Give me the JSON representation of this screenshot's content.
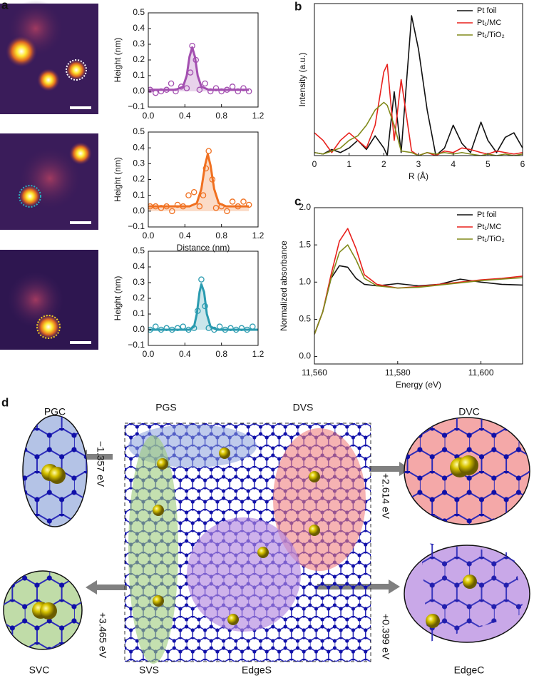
{
  "panel_labels": [
    "a",
    "b",
    "c",
    "d"
  ],
  "chart_data": [
    {
      "type": "scatter",
      "ylabel": "Height (nm)",
      "xlim": [
        0,
        1.2
      ],
      "xticks": [
        {
          "value": 0,
          "label": "0.0"
        },
        0.4,
        0.8,
        1.2
      ],
      "ylim": [
        -0.1,
        0.5
      ],
      "yticks": [
        {
          "value": -0.1,
          "label": "−0.1"
        },
        {
          "value": 0,
          "label": "0.0"
        },
        0.1,
        0.2,
        0.3,
        0.4,
        0.5
      ],
      "series": [
        {
          "mode": "markers",
          "color": "#a34fb0",
          "x": [
            0.02,
            0.08,
            0.14,
            0.2,
            0.25,
            0.3,
            0.36,
            0.42,
            0.46,
            0.48,
            0.52,
            0.56,
            0.62,
            0.68,
            0.74,
            0.8,
            0.86,
            0.92,
            0.98,
            1.04,
            1.1
          ],
          "values": [
            0.01,
            -0.01,
            0.0,
            0.01,
            0.05,
            0.0,
            0.03,
            0.02,
            0.12,
            0.29,
            0.2,
            0.01,
            0.05,
            0.0,
            0.02,
            0.0,
            0.01,
            0.03,
            0.0,
            0.02,
            0.0
          ]
        },
        {
          "mode": "line",
          "fill": true,
          "color": "#a34fb0",
          "x": [
            0,
            0.3,
            0.38,
            0.42,
            0.45,
            0.48,
            0.51,
            0.54,
            0.58,
            0.66,
            1.1
          ],
          "values": [
            0.01,
            0.01,
            0.03,
            0.1,
            0.22,
            0.28,
            0.22,
            0.1,
            0.03,
            0.01,
            0.01
          ]
        }
      ]
    },
    {
      "type": "scatter",
      "ylabel": "Height (nm)",
      "xlabel": "Distance (nm)",
      "xlim": [
        0,
        1.2
      ],
      "xticks": [
        {
          "value": 0,
          "label": "0.0"
        },
        0.4,
        0.8,
        1.2
      ],
      "ylim": [
        -0.1,
        0.5
      ],
      "yticks": [
        {
          "value": -0.1,
          "label": "−0.1"
        },
        {
          "value": 0,
          "label": "0.0"
        },
        0.1,
        0.2,
        0.3,
        0.4,
        0.5
      ],
      "series": [
        {
          "mode": "markers",
          "color": "#f07020",
          "x": [
            0.02,
            0.08,
            0.14,
            0.2,
            0.26,
            0.32,
            0.38,
            0.44,
            0.5,
            0.56,
            0.6,
            0.63,
            0.66,
            0.7,
            0.74,
            0.8,
            0.86,
            0.92,
            0.98,
            1.04,
            1.1
          ],
          "values": [
            0.03,
            0.03,
            0.02,
            0.03,
            0.0,
            0.04,
            0.03,
            0.1,
            0.12,
            0.03,
            0.1,
            0.27,
            0.38,
            0.2,
            0.02,
            0.03,
            0.0,
            0.06,
            0.03,
            0.06,
            0.04
          ]
        },
        {
          "mode": "line",
          "fill": true,
          "color": "#f07020",
          "x": [
            0,
            0.45,
            0.53,
            0.58,
            0.62,
            0.65,
            0.68,
            0.72,
            0.77,
            0.85,
            1.1
          ],
          "values": [
            0.03,
            0.03,
            0.05,
            0.14,
            0.29,
            0.36,
            0.29,
            0.14,
            0.05,
            0.03,
            0.03
          ]
        }
      ]
    },
    {
      "type": "scatter",
      "ylabel": "Height (nm)",
      "xlim": [
        0,
        1.2
      ],
      "xticks": [
        {
          "value": 0,
          "label": "0.0"
        },
        0.4,
        0.8,
        1.2
      ],
      "ylim": [
        -0.1,
        0.5
      ],
      "yticks": [
        {
          "value": -0.1,
          "label": "−0.1"
        },
        {
          "value": 0,
          "label": "0.0"
        },
        0.1,
        0.2,
        0.3,
        0.4,
        0.5
      ],
      "series": [
        {
          "mode": "markers",
          "color": "#2a9bb0",
          "x": [
            0.02,
            0.08,
            0.14,
            0.2,
            0.26,
            0.32,
            0.38,
            0.44,
            0.5,
            0.54,
            0.58,
            0.62,
            0.66,
            0.72,
            0.78,
            0.84,
            0.9,
            0.96,
            1.02,
            1.08,
            1.14
          ],
          "values": [
            0.0,
            0.02,
            0.0,
            0.01,
            0.0,
            0.01,
            0.02,
            0.0,
            0.01,
            0.12,
            0.32,
            0.15,
            0.01,
            0.0,
            0.02,
            0.0,
            0.01,
            0.0,
            0.01,
            0.0,
            0.02
          ]
        },
        {
          "mode": "line",
          "fill": true,
          "color": "#2a9bb0",
          "x": [
            0,
            0.45,
            0.5,
            0.53,
            0.56,
            0.58,
            0.61,
            0.64,
            0.68,
            0.75,
            1.2
          ],
          "values": [
            0,
            0,
            0.02,
            0.1,
            0.24,
            0.29,
            0.24,
            0.1,
            0.02,
            0,
            0
          ]
        }
      ]
    },
    {
      "type": "line",
      "ylabel": "Intensity (a.u.)",
      "xlabel": "R (Å)",
      "legend": "upper right",
      "xlim": [
        0,
        6
      ],
      "xticks": [
        0,
        1,
        2,
        3,
        4,
        5,
        6
      ],
      "ylim": [
        0,
        1
      ],
      "yticks": [],
      "series": [
        {
          "name": "Pt foil",
          "color": "#111111",
          "x": [
            0,
            0.25,
            0.5,
            0.75,
            1,
            1.25,
            1.5,
            1.75,
            2,
            2.1,
            2.3,
            2.5,
            2.8,
            3,
            3.25,
            3.5,
            3.75,
            4,
            4.25,
            4.5,
            4.8,
            5,
            5.25,
            5.5,
            5.75,
            6
          ],
          "values": [
            0.02,
            0.01,
            0.04,
            0.02,
            0.05,
            0.1,
            0.04,
            0.13,
            0.05,
            0.0,
            0.42,
            0.02,
            0.92,
            0.7,
            0.3,
            0.0,
            0.05,
            0.2,
            0.08,
            0.02,
            0.22,
            0.1,
            0.02,
            0.12,
            0.15,
            0.05
          ]
        },
        {
          "name": "Pt₁/MC",
          "color": "#e8201c",
          "x": [
            0,
            0.25,
            0.5,
            0.75,
            1,
            1.25,
            1.5,
            1.75,
            2,
            2.1,
            2.3,
            2.5,
            2.8,
            3,
            3.25,
            3.5,
            3.75,
            4,
            4.25,
            4.5,
            4.8,
            5,
            5.25,
            5.5,
            5.75,
            6
          ],
          "values": [
            0.15,
            0.1,
            0.02,
            0.1,
            0.15,
            0.1,
            0.05,
            0.2,
            0.55,
            0.6,
            0.1,
            0.5,
            0.03,
            0.0,
            0.02,
            0.0,
            0.03,
            0.02,
            0.05,
            0.04,
            0.02,
            0.01,
            0.03,
            0.02,
            0.01,
            0.02
          ]
        },
        {
          "name": "Pt₁/TiO₂",
          "color": "#808a1a",
          "x": [
            0,
            0.25,
            0.5,
            0.75,
            1,
            1.25,
            1.5,
            1.75,
            2,
            2.1,
            2.3,
            2.5,
            2.8,
            3,
            3.25,
            3.5,
            3.75,
            4,
            4.25,
            4.5,
            4.8,
            5,
            5.25,
            5.5,
            5.75,
            6
          ],
          "values": [
            0.02,
            0.01,
            0.03,
            0.05,
            0.1,
            0.13,
            0.2,
            0.3,
            0.35,
            0.33,
            0.2,
            0.03,
            0.02,
            0.0,
            0.02,
            0.01,
            0.02,
            0.01,
            0.02,
            0.01,
            0.0,
            0.01,
            0.0,
            0.01,
            0.0,
            0.01
          ]
        }
      ]
    },
    {
      "type": "line",
      "ylabel": "Normalized absorbance",
      "xlabel": "Energy (eV)",
      "legend": "upper right",
      "xlim": [
        11560,
        11610
      ],
      "xticks": [
        {
          "value": 11560,
          "label": "11,560"
        },
        {
          "value": 11580,
          "label": "11,580"
        },
        {
          "value": 11600,
          "label": "11,600"
        }
      ],
      "ylim": [
        -0.1,
        2.0
      ],
      "yticks": [
        {
          "value": 0,
          "label": "0.0"
        },
        0.5,
        {
          "value": 1,
          "label": "1.0"
        },
        1.5,
        {
          "value": 2,
          "label": "2.0"
        }
      ],
      "series": [
        {
          "name": "Pt foil",
          "color": "#111111",
          "x": [
            11560,
            11562,
            11564,
            11566,
            11568,
            11570,
            11572,
            11575,
            11580,
            11585,
            11590,
            11595,
            11600,
            11605,
            11610
          ],
          "values": [
            0.3,
            0.6,
            1.05,
            1.22,
            1.2,
            1.05,
            0.97,
            0.95,
            0.98,
            0.95,
            0.97,
            1.04,
            1.0,
            0.97,
            0.96
          ]
        },
        {
          "name": "Pt₁/MC",
          "color": "#e8201c",
          "x": [
            11560,
            11562,
            11564,
            11566,
            11568,
            11570,
            11572,
            11575,
            11580,
            11585,
            11590,
            11595,
            11600,
            11605,
            11610
          ],
          "values": [
            0.3,
            0.6,
            1.1,
            1.55,
            1.72,
            1.45,
            1.1,
            0.97,
            0.92,
            0.94,
            0.97,
            1.0,
            1.03,
            1.05,
            1.08
          ]
        },
        {
          "name": "Pt₁/TiO₂",
          "color": "#808a1a",
          "x": [
            11560,
            11562,
            11564,
            11566,
            11568,
            11570,
            11572,
            11575,
            11580,
            11585,
            11590,
            11595,
            11600,
            11605,
            11610
          ],
          "values": [
            0.3,
            0.6,
            1.05,
            1.4,
            1.5,
            1.3,
            1.05,
            0.95,
            0.92,
            0.93,
            0.96,
            0.99,
            1.02,
            1.04,
            1.06
          ]
        }
      ]
    }
  ],
  "diagram": {
    "labels": [
      "PGC",
      "PGS",
      "DVS",
      "DVC",
      "SVC",
      "SVS",
      "EdgeS",
      "EdgeC"
    ],
    "energies": [
      "−1.357 eV",
      "+2.614 eV",
      "+3.465 eV",
      "+0.399 eV"
    ]
  }
}
